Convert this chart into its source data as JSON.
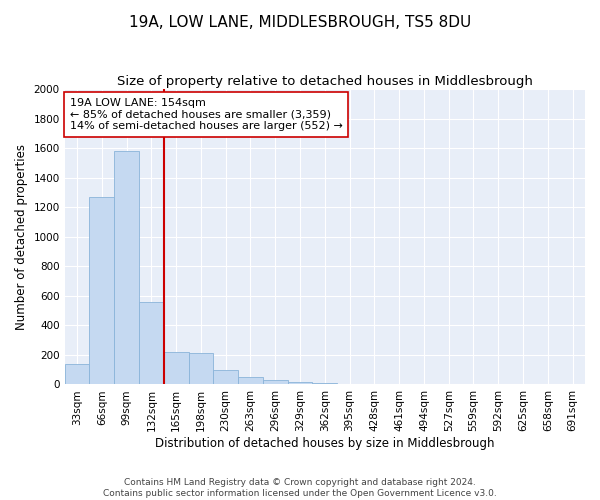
{
  "title": "19A, LOW LANE, MIDDLESBROUGH, TS5 8DU",
  "subtitle": "Size of property relative to detached houses in Middlesbrough",
  "xlabel": "Distribution of detached houses by size in Middlesbrough",
  "ylabel": "Number of detached properties",
  "bar_labels": [
    "33sqm",
    "66sqm",
    "99sqm",
    "132sqm",
    "165sqm",
    "198sqm",
    "230sqm",
    "263sqm",
    "296sqm",
    "329sqm",
    "362sqm",
    "395sqm",
    "428sqm",
    "461sqm",
    "494sqm",
    "527sqm",
    "559sqm",
    "592sqm",
    "625sqm",
    "658sqm",
    "691sqm"
  ],
  "bar_values": [
    140,
    1270,
    1580,
    560,
    220,
    215,
    95,
    50,
    28,
    18,
    12,
    5,
    0,
    0,
    0,
    0,
    0,
    0,
    0,
    0,
    0
  ],
  "bar_color": "#c5d9f1",
  "bar_edge_color": "#8ab4d9",
  "vline_color": "#cc0000",
  "annotation_line1": "19A LOW LANE: 154sqm",
  "annotation_line2": "← 85% of detached houses are smaller (3,359)",
  "annotation_line3": "14% of semi-detached houses are larger (552) →",
  "annotation_box_color": "#ffffff",
  "annotation_box_edge_color": "#cc0000",
  "ylim": [
    0,
    2000
  ],
  "yticks": [
    0,
    200,
    400,
    600,
    800,
    1000,
    1200,
    1400,
    1600,
    1800,
    2000
  ],
  "fig_background_color": "#ffffff",
  "plot_background_color": "#e8eef8",
  "grid_color": "#ffffff",
  "footer_text": "Contains HM Land Registry data © Crown copyright and database right 2024.\nContains public sector information licensed under the Open Government Licence v3.0.",
  "title_fontsize": 11,
  "subtitle_fontsize": 9.5,
  "xlabel_fontsize": 8.5,
  "ylabel_fontsize": 8.5,
  "tick_fontsize": 7.5,
  "annotation_fontsize": 8,
  "footer_fontsize": 6.5
}
